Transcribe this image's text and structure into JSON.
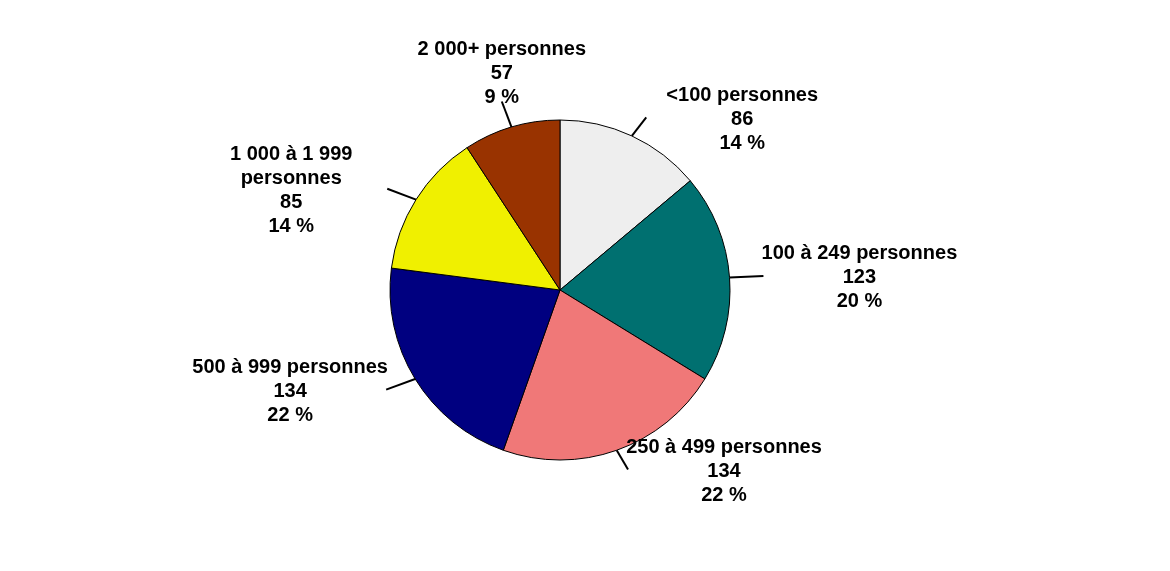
{
  "chart_data": {
    "type": "pie",
    "categories": [
      "<100 personnes",
      "100 à 249 personnes",
      "250 à 499 personnes",
      "500 à 999 personnes",
      "1 000 à 1 999 personnes",
      "2 000+ personnes"
    ],
    "values": [
      86,
      123,
      134,
      134,
      85,
      57
    ],
    "value_labels": [
      "86\n14 %",
      "123\n20 %",
      "134\n22 %",
      "134\n22 %",
      "85\n14 %",
      "57\n9 %"
    ],
    "colors": [
      "#eeeeee",
      "#007070",
      "#f07878",
      "#000080",
      "#f0f000",
      "#993300"
    ]
  }
}
